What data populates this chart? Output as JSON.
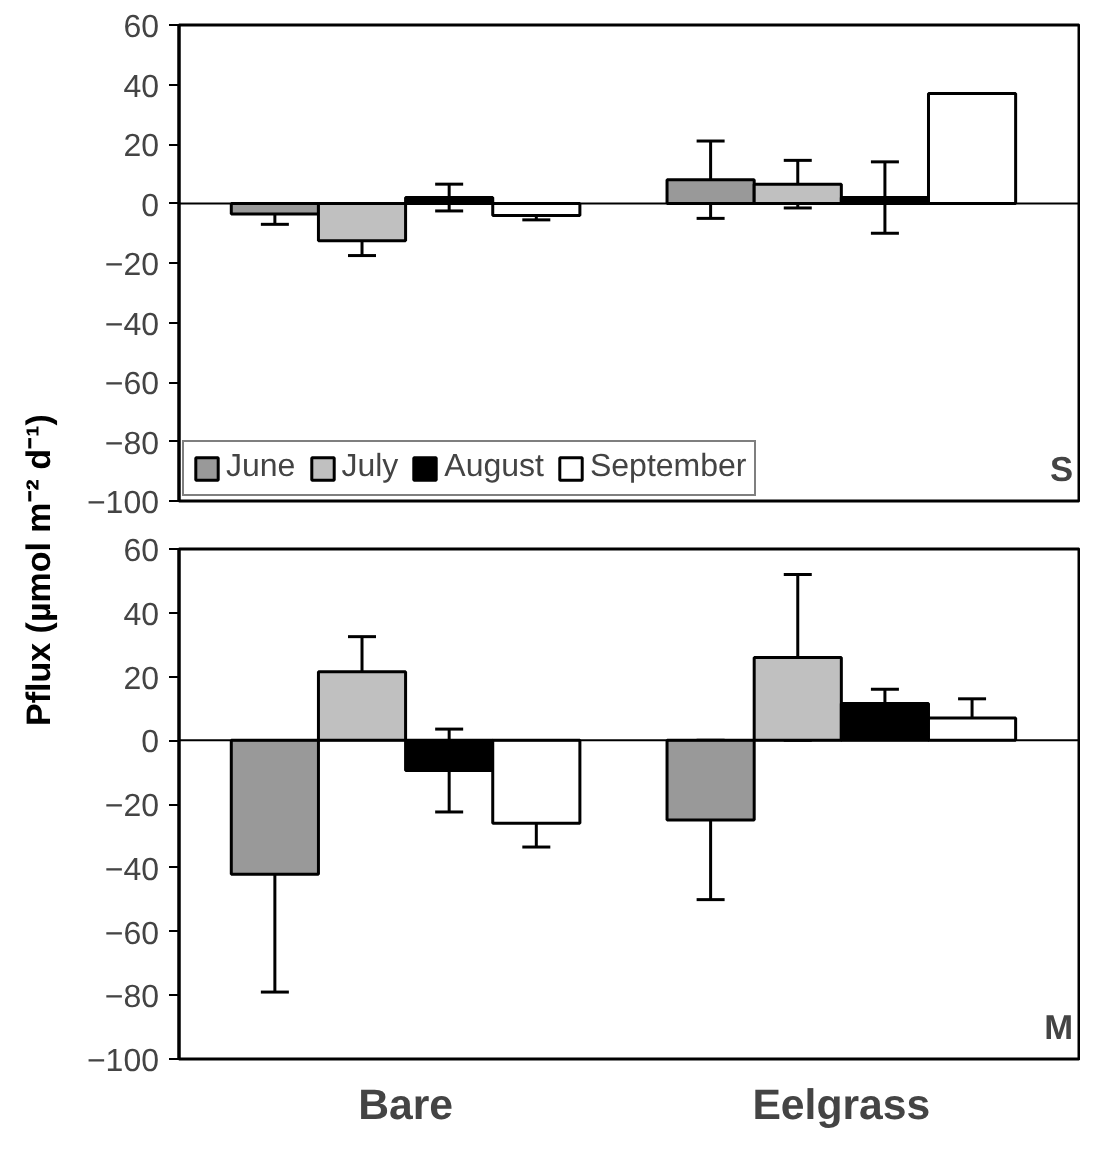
{
  "chart_data": [
    {
      "type": "bar",
      "ylabel": "Pflux (µmol m⁻² d⁻¹)",
      "categories": [
        null,
        null
      ],
      "tick_labels": "y",
      "legend": "bottom left",
      "grid": false,
      "ylim": [
        -100,
        60
      ],
      "yticks": [
        {
          "value": -100,
          "label": "−100"
        },
        {
          "value": -80,
          "label": "−80"
        },
        {
          "value": -60,
          "label": "−60"
        },
        {
          "value": -40,
          "label": "−40"
        },
        {
          "value": -20,
          "label": "−20"
        },
        0,
        20,
        40,
        60
      ],
      "annotations": [
        "S"
      ],
      "ref_lines": [
        {
          "axis": "y",
          "value": 0
        }
      ],
      "series": [
        {
          "name": "June",
          "color": "#999999",
          "values": [
            -3.5,
            8
          ],
          "errors": [
            3.5,
            13
          ]
        },
        {
          "name": "July",
          "color": "#c0c0c0",
          "values": [
            -12.5,
            6.5
          ],
          "errors": [
            5,
            8
          ]
        },
        {
          "name": "August",
          "color": "#000000",
          "values": [
            2,
            2
          ],
          "errors": [
            4.5,
            12
          ]
        },
        {
          "name": "September",
          "color": "#ffffff",
          "values": [
            -4,
            37
          ],
          "errors": [
            1.5,
            null
          ]
        }
      ]
    },
    {
      "type": "bar",
      "categories": [
        "Bare",
        "Eelgrass"
      ],
      "grid": false,
      "ylim": [
        -100,
        60
      ],
      "yticks": [
        {
          "value": -100,
          "label": "−100"
        },
        {
          "value": -80,
          "label": "−80"
        },
        {
          "value": -60,
          "label": "−60"
        },
        {
          "value": -40,
          "label": "−40"
        },
        {
          "value": -20,
          "label": "−20"
        },
        0,
        20,
        40,
        60
      ],
      "annotations": [
        "M"
      ],
      "ref_lines": [
        {
          "axis": "y",
          "value": 0
        }
      ],
      "series": [
        {
          "color": "#999999",
          "values": [
            -42,
            -25
          ],
          "errors": [
            37,
            25
          ]
        },
        {
          "color": "#c0c0c0",
          "values": [
            21.5,
            26
          ],
          "errors": [
            11,
            26
          ]
        },
        {
          "color": "#000000",
          "values": [
            -9.5,
            11.5
          ],
          "errors": [
            13,
            4.5
          ]
        },
        {
          "color": "#ffffff",
          "values": [
            -26,
            7
          ],
          "errors": [
            7.5,
            6
          ]
        }
      ]
    }
  ]
}
